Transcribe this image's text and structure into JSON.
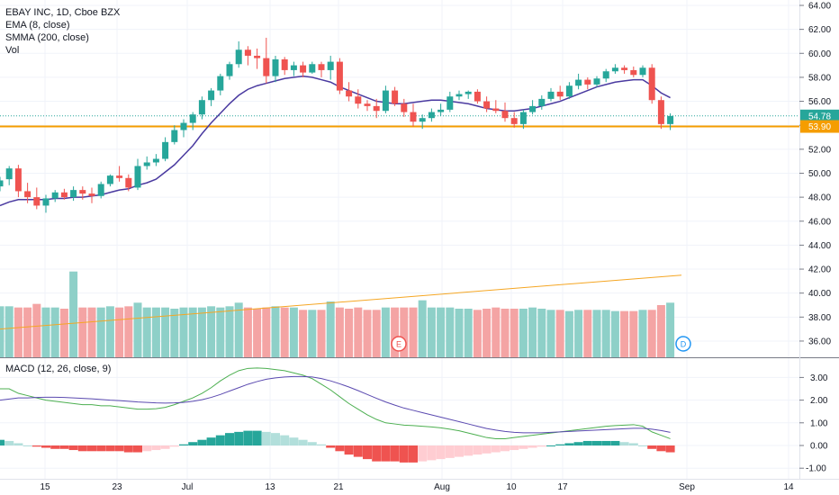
{
  "legend": {
    "symbol": "EBAY INC, 1D, Cboe BZX",
    "ema": "EMA (8, close)",
    "smma": "SMMA (200, close)",
    "vol": "Vol",
    "macd": "MACD (12, 26, close, 9)"
  },
  "colors": {
    "up": "#26a69a",
    "down": "#ef5350",
    "up_vol": "#8ed0c8",
    "down_vol": "#f4a4a4",
    "ema": "#4a3aa0",
    "smma": "#f5a623",
    "support": "#f59d00",
    "macd_line": "#4caf50",
    "signal_line": "#5b4ab0"
  },
  "price_axis": {
    "ticks": [
      "64.00",
      "62.00",
      "60.00",
      "58.00",
      "56.00",
      "54.00",
      "52.00",
      "50.00",
      "48.00",
      "46.00",
      "44.00",
      "42.00",
      "40.00",
      "38.00",
      "36.00"
    ]
  },
  "macd_axis": {
    "ticks": [
      "3.00",
      "2.00",
      "1.00",
      "0.00",
      "-1.00"
    ]
  },
  "badges": {
    "last_price": "54.78",
    "support_price": "53.90"
  },
  "events": {
    "earnings": "E",
    "dividend": "D"
  },
  "time_axis": {
    "labels": [
      "15",
      "23",
      "Jul",
      "13",
      "21",
      "Aug",
      "10",
      "17",
      "Sep",
      "14"
    ]
  },
  "chart_data": [
    {
      "type": "candlestick",
      "title": "EBAY INC, 1D, Cboe BZX",
      "ylim": [
        35,
        64
      ],
      "support_level": 53.9,
      "last_price": 54.78,
      "ohlc": [
        [
          48.9,
          49.7,
          48.5,
          49.4
        ],
        [
          49.5,
          50.6,
          49.0,
          50.4
        ],
        [
          50.4,
          50.7,
          48.0,
          48.5
        ],
        [
          48.5,
          49.2,
          47.5,
          48.0
        ],
        [
          48.0,
          48.8,
          47.0,
          47.3
        ],
        [
          47.3,
          48.2,
          46.7,
          47.9
        ],
        [
          47.9,
          48.6,
          47.6,
          48.4
        ],
        [
          48.4,
          48.7,
          47.8,
          48.0
        ],
        [
          48.0,
          48.9,
          47.7,
          48.6
        ],
        [
          48.6,
          48.9,
          47.8,
          48.3
        ],
        [
          48.3,
          48.8,
          47.5,
          48.1
        ],
        [
          48.1,
          49.3,
          47.9,
          49.1
        ],
        [
          49.1,
          49.9,
          48.9,
          49.8
        ],
        [
          49.8,
          50.6,
          49.3,
          49.6
        ],
        [
          49.6,
          49.9,
          48.5,
          48.8
        ],
        [
          48.8,
          51.2,
          48.6,
          50.6
        ],
        [
          50.6,
          51.4,
          50.3,
          50.9
        ],
        [
          50.9,
          51.6,
          50.6,
          51.2
        ],
        [
          51.2,
          53.0,
          51.0,
          52.6
        ],
        [
          52.6,
          54.0,
          52.4,
          53.6
        ],
        [
          53.6,
          54.5,
          53.0,
          54.2
        ],
        [
          54.2,
          55.1,
          53.6,
          54.9
        ],
        [
          54.9,
          56.4,
          54.5,
          56.1
        ],
        [
          56.1,
          57.1,
          55.6,
          56.9
        ],
        [
          56.9,
          58.3,
          56.5,
          58.1
        ],
        [
          58.1,
          59.3,
          57.8,
          59.1
        ],
        [
          59.1,
          61.0,
          58.8,
          60.3
        ],
        [
          60.3,
          60.6,
          59.0,
          59.8
        ],
        [
          59.8,
          60.4,
          58.7,
          59.6
        ],
        [
          59.6,
          61.3,
          57.5,
          58.1
        ],
        [
          58.1,
          59.8,
          57.6,
          59.5
        ],
        [
          59.5,
          59.7,
          58.2,
          58.6
        ],
        [
          58.6,
          59.3,
          58.1,
          59.0
        ],
        [
          59.0,
          59.3,
          58.0,
          58.4
        ],
        [
          58.4,
          59.3,
          58.3,
          59.1
        ],
        [
          59.1,
          59.3,
          58.0,
          58.6
        ],
        [
          58.6,
          59.8,
          57.8,
          59.3
        ],
        [
          59.3,
          59.6,
          56.6,
          56.9
        ],
        [
          56.9,
          57.6,
          56.0,
          56.4
        ],
        [
          56.4,
          57.0,
          55.4,
          55.8
        ],
        [
          55.8,
          56.1,
          55.2,
          55.6
        ],
        [
          55.6,
          56.2,
          54.6,
          55.2
        ],
        [
          55.2,
          57.3,
          55.0,
          56.9
        ],
        [
          56.9,
          57.2,
          55.6,
          55.8
        ],
        [
          55.8,
          56.2,
          54.7,
          55.1
        ],
        [
          55.1,
          55.8,
          53.9,
          54.3
        ],
        [
          54.3,
          54.9,
          53.7,
          54.6
        ],
        [
          54.6,
          55.4,
          54.3,
          55.1
        ],
        [
          55.1,
          55.8,
          54.8,
          55.3
        ],
        [
          55.3,
          56.8,
          55.1,
          56.4
        ],
        [
          56.4,
          56.9,
          56.1,
          56.6
        ],
        [
          56.6,
          56.9,
          56.2,
          56.8
        ],
        [
          56.8,
          57.0,
          55.8,
          56.0
        ],
        [
          56.0,
          56.4,
          55.1,
          55.4
        ],
        [
          55.4,
          56.1,
          55.0,
          55.2
        ],
        [
          55.2,
          55.9,
          54.3,
          54.6
        ],
        [
          54.6,
          55.1,
          53.8,
          54.1
        ],
        [
          54.1,
          55.3,
          53.7,
          55.1
        ],
        [
          55.1,
          56.1,
          54.9,
          55.6
        ],
        [
          55.6,
          56.5,
          55.3,
          56.2
        ],
        [
          56.2,
          57.1,
          56.0,
          56.8
        ],
        [
          56.8,
          57.3,
          56.1,
          56.4
        ],
        [
          56.4,
          57.6,
          56.2,
          57.3
        ],
        [
          57.3,
          58.3,
          57.0,
          57.8
        ],
        [
          57.8,
          58.0,
          57.0,
          57.4
        ],
        [
          57.4,
          58.1,
          57.2,
          57.9
        ],
        [
          57.9,
          58.7,
          57.6,
          58.5
        ],
        [
          58.5,
          59.1,
          58.3,
          58.8
        ],
        [
          58.8,
          59.0,
          58.3,
          58.6
        ],
        [
          58.6,
          58.9,
          58.0,
          58.2
        ],
        [
          58.2,
          59.0,
          58.0,
          58.8
        ],
        [
          58.8,
          59.1,
          55.8,
          56.1
        ],
        [
          56.1,
          56.4,
          53.7,
          54.1
        ],
        [
          54.1,
          55.0,
          53.6,
          54.78
        ]
      ],
      "ema8": [
        47.3,
        47.6,
        47.8,
        47.8,
        47.8,
        47.8,
        47.9,
        47.9,
        48.0,
        48.0,
        48.1,
        48.2,
        48.4,
        48.6,
        48.7,
        49.0,
        49.2,
        49.5,
        50.1,
        50.7,
        51.5,
        52.3,
        53.3,
        54.2,
        55.0,
        55.8,
        56.5,
        57.0,
        57.3,
        57.5,
        57.7,
        57.9,
        58.0,
        58.1,
        58.0,
        57.8,
        57.6,
        57.2,
        56.9,
        56.6,
        56.3,
        56.0,
        55.9,
        55.8,
        55.8,
        55.9,
        56.0,
        56.1,
        56.1,
        56.0,
        55.9,
        55.8,
        55.6,
        55.4,
        55.3,
        55.2,
        55.2,
        55.3,
        55.4,
        55.6,
        55.8,
        56.0,
        56.3,
        56.6,
        56.9,
        57.2,
        57.4,
        57.6,
        57.7,
        57.8,
        57.8,
        57.3,
        56.7,
        56.3
      ],
      "volume": [
        38.9,
        38.9,
        38.8,
        38.8,
        39.1,
        38.8,
        38.8,
        38.7,
        41.8,
        38.8,
        38.8,
        38.8,
        38.9,
        38.8,
        38.9,
        39.2,
        38.8,
        38.8,
        38.8,
        38.7,
        38.8,
        38.8,
        38.8,
        38.9,
        38.8,
        38.9,
        39.2,
        38.8,
        38.7,
        38.8,
        38.9,
        38.8,
        38.8,
        38.6,
        38.6,
        38.6,
        39.3,
        38.8,
        38.7,
        38.8,
        38.6,
        38.6,
        38.8,
        38.8,
        38.8,
        38.8,
        39.4,
        38.8,
        38.8,
        38.8,
        38.7,
        38.7,
        38.6,
        38.7,
        38.8,
        38.7,
        38.7,
        38.7,
        38.8,
        38.7,
        38.6,
        38.6,
        38.5,
        38.6,
        38.6,
        38.6,
        38.6,
        38.5,
        38.5,
        38.5,
        38.6,
        38.6,
        39.0,
        39.2
      ],
      "volume_up_down": "auto",
      "smma200_volume": [
        37.0,
        41.5
      ]
    },
    {
      "type": "macd",
      "title": "MACD (12, 26, close, 9)",
      "ylim": [
        -1.2,
        3.6
      ],
      "macd": [
        2.5,
        2.5,
        2.3,
        2.2,
        2.1,
        2.0,
        1.95,
        1.9,
        1.85,
        1.8,
        1.8,
        1.75,
        1.75,
        1.7,
        1.65,
        1.6,
        1.6,
        1.62,
        1.68,
        1.8,
        1.95,
        2.1,
        2.3,
        2.55,
        2.85,
        3.1,
        3.3,
        3.4,
        3.42,
        3.4,
        3.35,
        3.3,
        3.2,
        3.1,
        2.95,
        2.7,
        2.45,
        2.15,
        1.85,
        1.6,
        1.35,
        1.15,
        1.0,
        0.95,
        0.9,
        0.88,
        0.85,
        0.82,
        0.78,
        0.72,
        0.65,
        0.55,
        0.45,
        0.35,
        0.3,
        0.3,
        0.35,
        0.4,
        0.45,
        0.5,
        0.55,
        0.6,
        0.65,
        0.7,
        0.75,
        0.8,
        0.85,
        0.88,
        0.9,
        0.92,
        0.85,
        0.6,
        0.45,
        0.3
      ],
      "signal": [
        2.0,
        2.05,
        2.1,
        2.1,
        2.12,
        2.13,
        2.13,
        2.12,
        2.1,
        2.08,
        2.06,
        2.03,
        2.0,
        1.98,
        1.95,
        1.92,
        1.9,
        1.88,
        1.87,
        1.88,
        1.9,
        1.95,
        2.02,
        2.12,
        2.25,
        2.4,
        2.55,
        2.7,
        2.82,
        2.92,
        2.98,
        3.02,
        3.04,
        3.04,
        3.02,
        2.95,
        2.85,
        2.72,
        2.58,
        2.42,
        2.25,
        2.08,
        1.92,
        1.78,
        1.65,
        1.55,
        1.45,
        1.35,
        1.25,
        1.15,
        1.05,
        0.95,
        0.85,
        0.75,
        0.68,
        0.62,
        0.58,
        0.56,
        0.56,
        0.56,
        0.58,
        0.6,
        0.62,
        0.64,
        0.66,
        0.68,
        0.7,
        0.72,
        0.74,
        0.76,
        0.76,
        0.72,
        0.66,
        0.58
      ],
      "histogram": [
        0.25,
        0.2,
        0.1,
        0.0,
        -0.05,
        -0.1,
        -0.15,
        -0.15,
        -0.2,
        -0.25,
        -0.25,
        -0.25,
        -0.25,
        -0.25,
        -0.3,
        -0.3,
        -0.25,
        -0.2,
        -0.15,
        -0.05,
        0.05,
        0.15,
        0.25,
        0.35,
        0.45,
        0.55,
        0.6,
        0.65,
        0.65,
        0.6,
        0.55,
        0.45,
        0.35,
        0.25,
        0.15,
        0.05,
        -0.1,
        -0.25,
        -0.4,
        -0.5,
        -0.6,
        -0.7,
        -0.7,
        -0.7,
        -0.75,
        -0.75,
        -0.7,
        -0.65,
        -0.6,
        -0.55,
        -0.5,
        -0.45,
        -0.4,
        -0.35,
        -0.3,
        -0.25,
        -0.2,
        -0.15,
        -0.1,
        -0.05,
        0.0,
        0.05,
        0.1,
        0.15,
        0.2,
        0.2,
        0.2,
        0.2,
        0.15,
        0.1,
        0.0,
        -0.15,
        -0.25,
        -0.3
      ]
    }
  ]
}
